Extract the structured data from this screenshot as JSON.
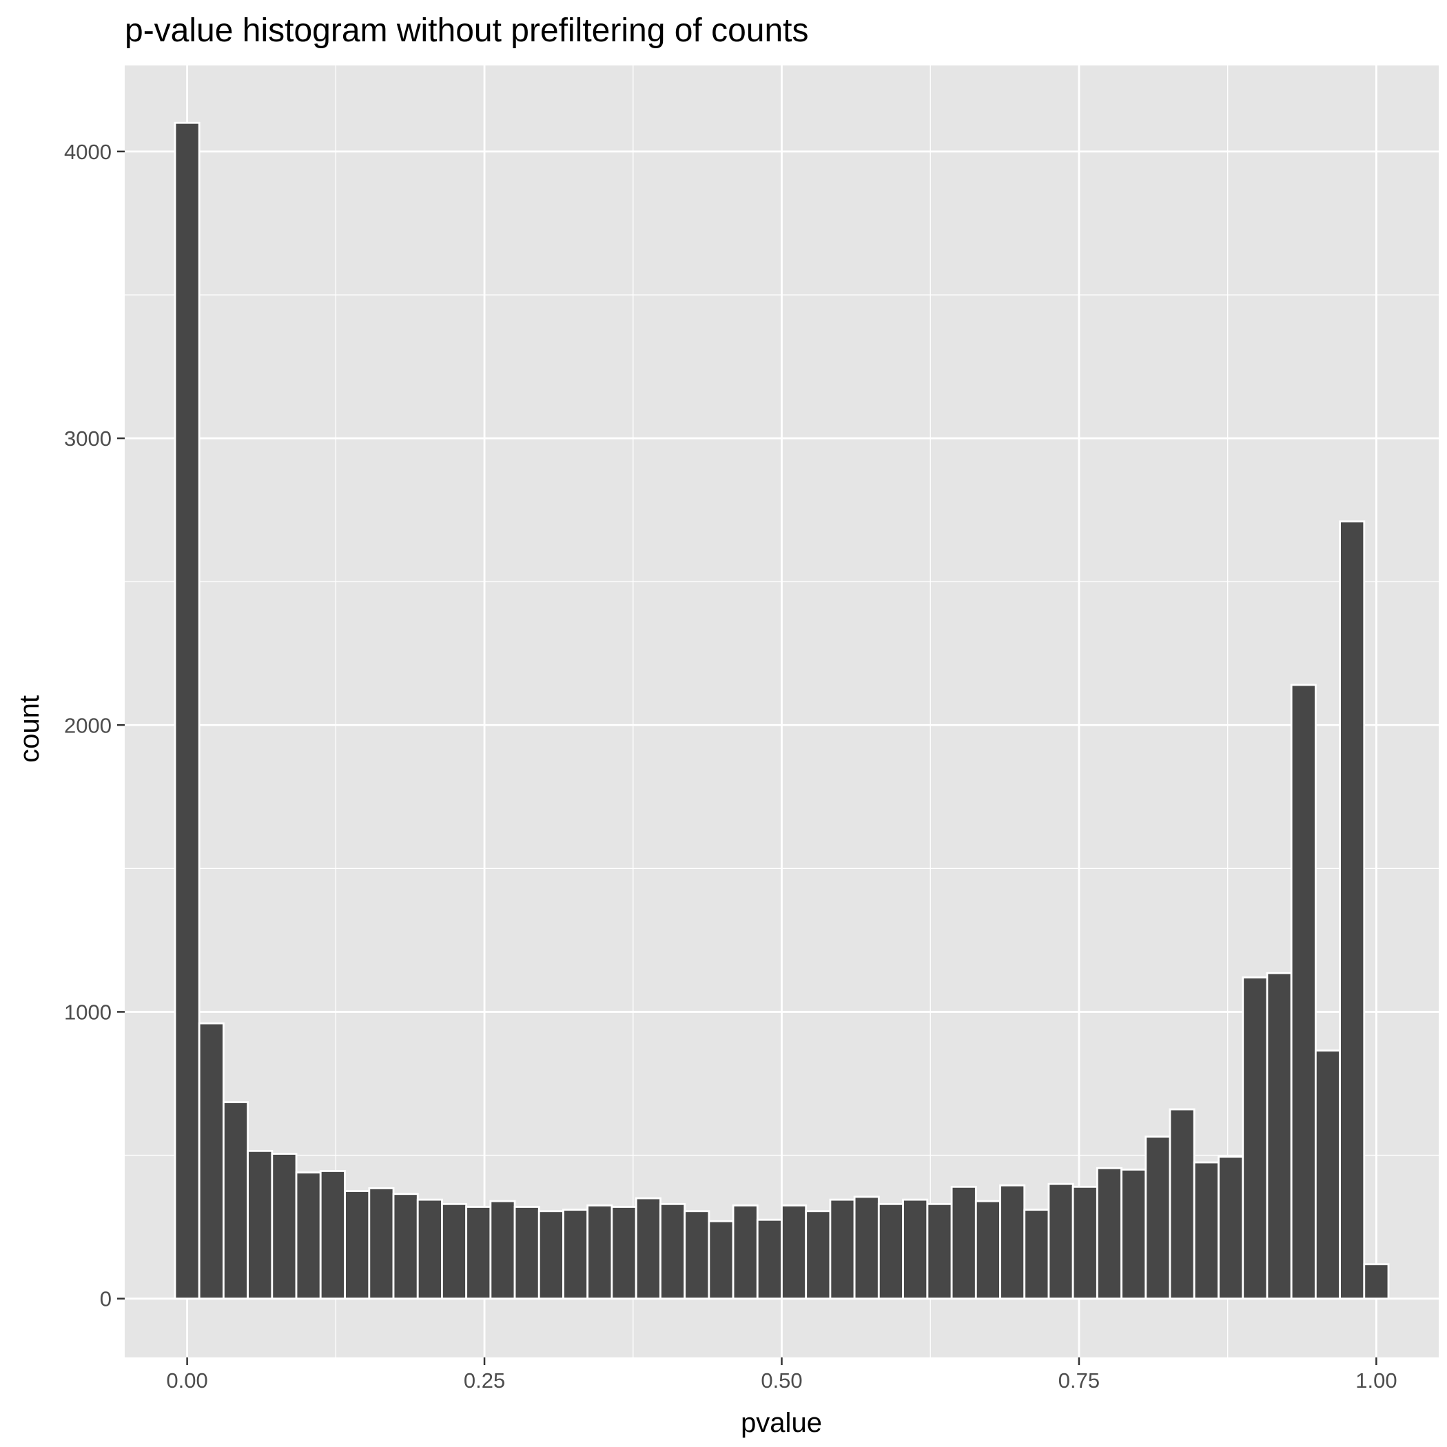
{
  "colors": {
    "panel_background": "#e5e5e5",
    "grid": "#ffffff",
    "bar_fill": "#474747",
    "bar_outline": "#ffffff",
    "tick_color": "#333333"
  },
  "chart_data": {
    "type": "bar",
    "title": "p-value histogram without prefiltering of counts",
    "xlabel": "pvalue",
    "ylabel": "count",
    "xlim": [
      -0.0525,
      1.0525
    ],
    "ylim": [
      -205,
      4300
    ],
    "x_ticks": [
      0,
      0.25,
      0.5,
      0.75,
      1
    ],
    "x_tick_labels": [
      "0.00",
      "0.25",
      "0.50",
      "0.75",
      "1.00"
    ],
    "y_ticks": [
      0,
      1000,
      2000,
      3000,
      4000
    ],
    "y_tick_labels": [
      "0",
      "1000",
      "2000",
      "3000",
      "4000"
    ],
    "grid": true,
    "binwidth": 0.0204,
    "bin_centers": [
      0,
      0.0204,
      0.0408,
      0.0612,
      0.0816,
      0.102,
      0.1224,
      0.1429,
      0.1633,
      0.1837,
      0.2041,
      0.2245,
      0.2449,
      0.2653,
      0.2857,
      0.3061,
      0.3265,
      0.3469,
      0.3673,
      0.3878,
      0.4082,
      0.4286,
      0.449,
      0.4694,
      0.4898,
      0.5102,
      0.5306,
      0.551,
      0.5714,
      0.5918,
      0.6122,
      0.6327,
      0.6531,
      0.6735,
      0.6939,
      0.7143,
      0.7347,
      0.7551,
      0.7755,
      0.7959,
      0.8163,
      0.8367,
      0.8571,
      0.8776,
      0.898,
      0.9184,
      0.9388,
      0.9592,
      0.9796,
      1.0
    ],
    "counts": [
      4100,
      960,
      685,
      515,
      505,
      440,
      445,
      375,
      385,
      365,
      345,
      330,
      320,
      340,
      320,
      305,
      310,
      325,
      320,
      350,
      330,
      305,
      270,
      325,
      275,
      325,
      305,
      345,
      355,
      330,
      345,
      330,
      390,
      340,
      395,
      310,
      400,
      390,
      455,
      450,
      565,
      660,
      475,
      495,
      1120,
      1135,
      2140,
      865,
      2710,
      120
    ]
  }
}
